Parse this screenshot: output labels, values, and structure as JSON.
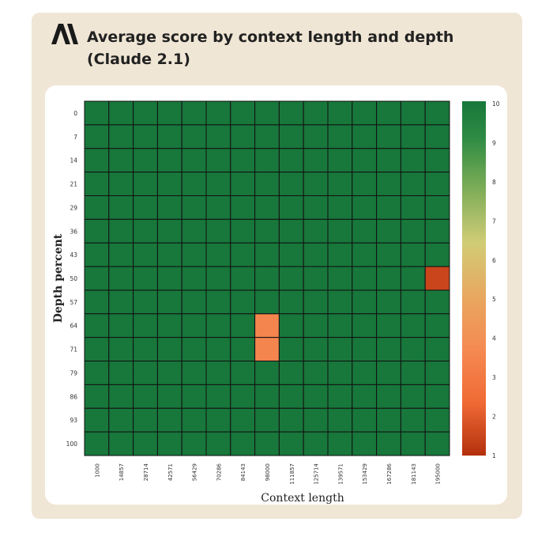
{
  "header": {
    "logo_icon": "anthropic-logo-icon",
    "title": "Average score by context length and depth (Claude 2.1)"
  },
  "chart_data": {
    "type": "heatmap",
    "title": "Average score by context length and depth (Claude 2.1)",
    "xlabel": "Context length",
    "ylabel": "Depth percent",
    "x_categories": [
      "1000",
      "14857",
      "28714",
      "42571",
      "56429",
      "70286",
      "84143",
      "98000",
      "111857",
      "125714",
      "139571",
      "153429",
      "167286",
      "181143",
      "195000"
    ],
    "y_categories": [
      "0",
      "7",
      "14",
      "21",
      "29",
      "36",
      "43",
      "50",
      "57",
      "64",
      "71",
      "79",
      "86",
      "93",
      "100"
    ],
    "default_value": 10,
    "cells": [
      {
        "x": "195000",
        "y": "50",
        "value": 1.5
      },
      {
        "x": "98000",
        "y": "64",
        "value": 3.5
      },
      {
        "x": "98000",
        "y": "71",
        "value": 3.5
      }
    ],
    "colorbar": {
      "ticks": [
        "1",
        "2",
        "3",
        "4",
        "5",
        "6",
        "7",
        "8",
        "9",
        "10"
      ],
      "range": [
        1,
        10
      ],
      "colors": [
        "#b3300d",
        "#f58a52",
        "#d1cc76",
        "#18773b"
      ]
    },
    "grid": true
  }
}
